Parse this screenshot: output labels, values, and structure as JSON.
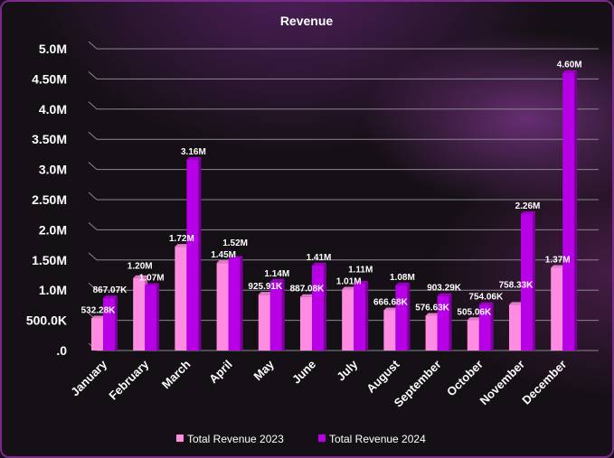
{
  "chart_data": {
    "type": "bar",
    "title": "Revenue",
    "categories": [
      "January",
      "February",
      "March",
      "April",
      "May",
      "June",
      "July",
      "August",
      "September",
      "October",
      "November",
      "December"
    ],
    "series": [
      {
        "name": "Total Revenue 2023",
        "color": "#ff8ce0",
        "values": [
          532280,
          1200000,
          1720000,
          1450000,
          925910,
          887080,
          1010000,
          666680,
          576630,
          505060,
          758330,
          1370000
        ],
        "labels": [
          "532.28K",
          "1.20M",
          "1.72M",
          "1.45M",
          "925.91K",
          "887.08K",
          "1.01M",
          "666.68K",
          "576.63K",
          "505.06K",
          "758.33K",
          "1.37M"
        ]
      },
      {
        "name": "Total Revenue 2024",
        "color": "#b800e6",
        "values": [
          867070,
          1070000,
          3160000,
          1520000,
          1140000,
          1410000,
          1110000,
          1080000,
          903290,
          754060,
          2260000,
          4600000
        ],
        "labels": [
          "867.07K",
          "1.07M",
          "3.16M",
          "1.52M",
          "1.14M",
          "1.41M",
          "1.11M",
          "1.08M",
          "903.29K",
          "754.06K",
          "2.26M",
          "4.60M"
        ]
      }
    ],
    "yticks": [
      0,
      500000,
      1000000,
      1500000,
      2000000,
      2500000,
      3000000,
      3500000,
      4000000,
      4500000,
      5000000
    ],
    "ytick_labels": [
      ".0",
      "500.0K",
      "1.0M",
      "1.50M",
      "2.0M",
      "2.50M",
      "3.0M",
      "3.50M",
      "4.0M",
      "4.50M",
      "5.0M"
    ],
    "ylim": [
      0,
      5000000
    ],
    "grid": true,
    "legend": "bottom"
  }
}
